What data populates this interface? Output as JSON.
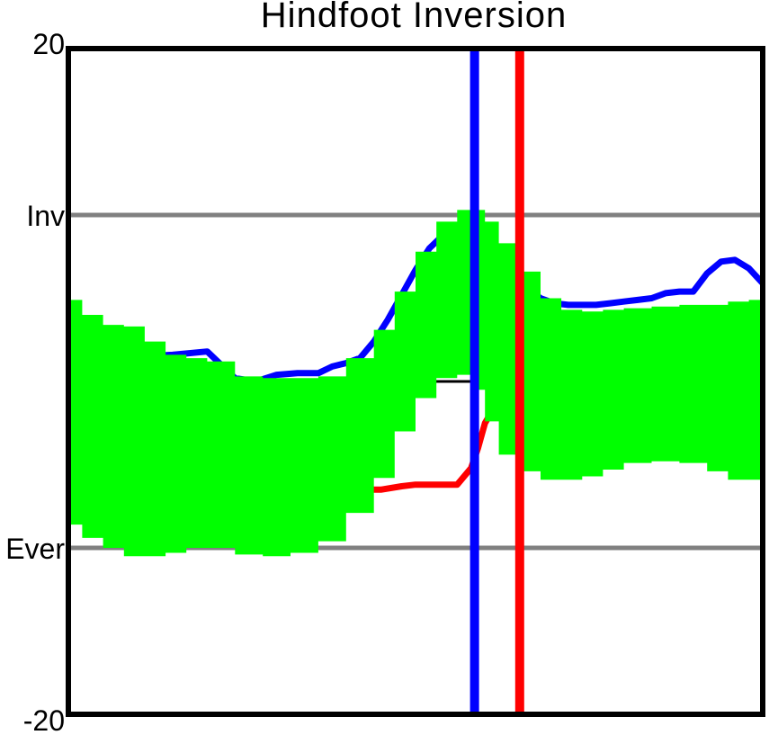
{
  "chart_data": {
    "type": "line",
    "title": "Hindfoot Inversion",
    "xlabel": "",
    "ylabel": "",
    "ylim": [
      -20,
      20
    ],
    "xlim": [
      0,
      100
    ],
    "y_tick_labels": [
      {
        "value": 20,
        "label": "20"
      },
      {
        "value": 10,
        "label": "Inv"
      },
      {
        "value": -10,
        "label": "Ever"
      },
      {
        "value": -20,
        "label": "-20"
      }
    ],
    "reference_lines": [
      {
        "y": 10,
        "color": "#808080"
      },
      {
        "y": -10,
        "color": "#808080"
      }
    ],
    "zero_line": {
      "y": 0,
      "color": "#000000"
    },
    "vertical_markers": [
      {
        "x": 58.5,
        "color": "#0000ff"
      },
      {
        "x": 65.0,
        "color": "#ff0000"
      }
    ],
    "normal_band": {
      "color": "#00ff00",
      "x": [
        0,
        2,
        5,
        8,
        11,
        14,
        17,
        20,
        24,
        28,
        32,
        36,
        40,
        44,
        47,
        50,
        53,
        56,
        58,
        60,
        62,
        65,
        68,
        71,
        74,
        77,
        80,
        84,
        88,
        92,
        95,
        98,
        100
      ],
      "upper": [
        4.9,
        4.0,
        3.4,
        3.3,
        2.4,
        1.6,
        1.4,
        1.2,
        0.3,
        0.2,
        0.2,
        0.3,
        1.4,
        3.1,
        5.4,
        7.8,
        9.6,
        10.3,
        10.3,
        9.6,
        8.3,
        6.6,
        5.0,
        4.3,
        4.2,
        4.3,
        4.4,
        4.5,
        4.6,
        4.6,
        4.8,
        4.9,
        4.9
      ],
      "lower": [
        -6.6,
        -8.6,
        -9.4,
        -10.0,
        -10.5,
        -10.5,
        -10.3,
        -10.0,
        -10.0,
        -10.4,
        -10.5,
        -10.3,
        -9.6,
        -7.9,
        -5.8,
        -3.0,
        -1.0,
        0.2,
        0.4,
        -0.5,
        -2.4,
        -4.4,
        -5.4,
        -5.9,
        -5.9,
        -5.7,
        -5.3,
        -4.9,
        -4.8,
        -4.9,
        -5.4,
        -5.9,
        -5.9
      ]
    },
    "series": [
      {
        "color": "#0000ff",
        "x": [
          0,
          5,
          10,
          15,
          20,
          24,
          27,
          30,
          33,
          36,
          38,
          40,
          42,
          44,
          46,
          48,
          50,
          52,
          54,
          56,
          58,
          60,
          62,
          64,
          66,
          68,
          70,
          72,
          74,
          76,
          78,
          80,
          82,
          84,
          86,
          88,
          90,
          92,
          94,
          96,
          98,
          100
        ],
        "values": [
          1.0,
          1.2,
          1.5,
          1.6,
          1.8,
          0.2,
          0.0,
          0.4,
          0.5,
          0.5,
          0.9,
          1.1,
          1.4,
          2.4,
          3.7,
          5.2,
          6.7,
          8.0,
          8.8,
          9.3,
          9.4,
          8.8,
          7.7,
          6.5,
          5.6,
          5.0,
          4.7,
          4.6,
          4.6,
          4.6,
          4.7,
          4.8,
          4.9,
          5.0,
          5.3,
          5.4,
          5.4,
          6.5,
          7.2,
          7.3,
          6.8,
          5.9
        ]
      },
      {
        "color": "#ff0000",
        "x": [
          0,
          5,
          10,
          15,
          20,
          25,
          30,
          35,
          40,
          45,
          48,
          50,
          52,
          54,
          56,
          58,
          59,
          60,
          61,
          62,
          63,
          64,
          65,
          66,
          68,
          70,
          72,
          75,
          78,
          80,
          84,
          88,
          92,
          96,
          100
        ],
        "values": [
          -1.8,
          -3.0,
          -4.4,
          -5.3,
          -6.0,
          -6.4,
          -6.6,
          -6.6,
          -6.5,
          -6.5,
          -6.3,
          -6.2,
          -6.2,
          -6.2,
          -6.2,
          -5.2,
          -4.0,
          -2.5,
          -1.8,
          -0.2,
          0.4,
          0.4,
          0.0,
          -1.5,
          -3.0,
          -4.2,
          -4.5,
          -4.5,
          -4.4,
          -4.3,
          -4.2,
          -4.3,
          -4.5,
          -4.8,
          -5.2
        ]
      }
    ],
    "grid": false,
    "legend": "none"
  }
}
